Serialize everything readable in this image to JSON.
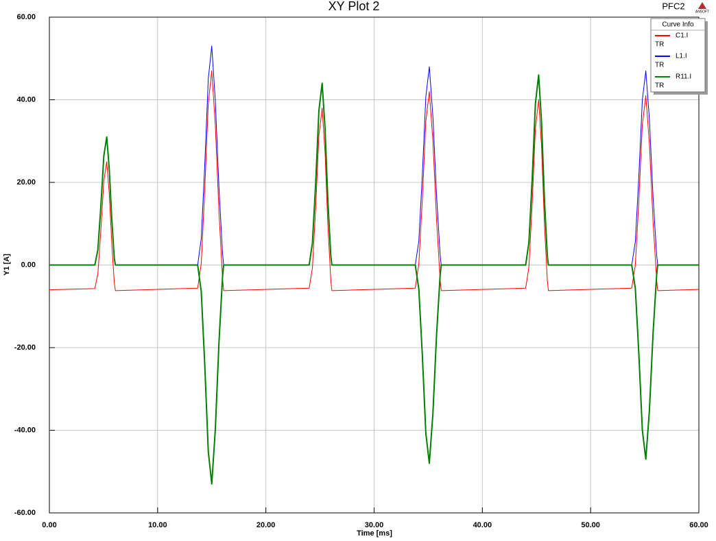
{
  "chart_data": {
    "type": "line",
    "title": "XY Plot 2",
    "project": "PFC2",
    "logo": "ANSOFT",
    "x_label": "Time [ms]",
    "y_label": "Y1 [A]",
    "legend_title": "Curve Info",
    "legend": "upper right",
    "grid": true,
    "xlim": [
      0,
      60
    ],
    "ylim": [
      -60,
      60
    ],
    "xticks": [
      {
        "value": 0,
        "label": "0.00"
      },
      {
        "value": 10,
        "label": "10.00"
      },
      {
        "value": 20,
        "label": "20.00"
      },
      {
        "value": 30,
        "label": "30.00"
      },
      {
        "value": 40,
        "label": "40.00"
      },
      {
        "value": 50,
        "label": "50.00"
      },
      {
        "value": 60,
        "label": "60.00"
      }
    ],
    "yticks": [
      {
        "value": -60,
        "label": "-60.00"
      },
      {
        "value": -40,
        "label": "-40.00"
      },
      {
        "value": -20,
        "label": "-20.00"
      },
      {
        "value": 0,
        "label": "0.00"
      },
      {
        "value": 20,
        "label": "20.00"
      },
      {
        "value": 40,
        "label": "40.00"
      },
      {
        "value": 60,
        "label": "60.00"
      }
    ],
    "x": [
      0,
      4.2,
      4.48,
      4.75,
      5.03,
      5.3,
      5.53,
      5.77,
      6.0,
      6.1,
      13.7,
      14.03,
      14.35,
      14.68,
      15.0,
      15.33,
      15.67,
      16.0,
      16.1,
      24.0,
      24.3,
      24.6,
      24.9,
      25.2,
      25.47,
      25.73,
      26.0,
      26.1,
      33.8,
      34.13,
      34.45,
      34.78,
      35.1,
      35.43,
      35.77,
      36.1,
      36.2,
      44.0,
      44.3,
      44.6,
      44.9,
      45.2,
      45.47,
      45.73,
      46.0,
      46.1,
      53.8,
      54.13,
      54.45,
      54.78,
      55.1,
      55.43,
      55.77,
      56.1,
      56.2,
      60
    ],
    "series": [
      {
        "name": "C1.I",
        "setup": "TR",
        "color": "#ff0000",
        "width": 1,
        "values": [
          -6.0,
          -5.7,
          -2.1,
          8.1,
          20.4,
          25,
          17.3,
          4.9,
          -4.4,
          -6.2,
          -5.6,
          0.4,
          17.9,
          39.1,
          47,
          33.8,
          12.6,
          -3.3,
          -6.2,
          -5.6,
          -0.7,
          13.8,
          31.4,
          38,
          27,
          9.4,
          -3.8,
          -6.2,
          -5.6,
          0.2,
          15.6,
          34.8,
          42,
          30,
          10.8,
          -3.6,
          -6.2,
          -5.6,
          -0.5,
          14.7,
          33.1,
          40,
          28.5,
          10.1,
          -3.7,
          -6.2,
          -5.6,
          0,
          15.2,
          34,
          41,
          29.3,
          10.5,
          -3.6,
          -6.2,
          -5.9
        ]
      },
      {
        "name": "L1.I",
        "setup": "TR",
        "color": "#0000ff",
        "width": 1,
        "values": [
          0,
          0,
          3.7,
          14.0,
          26.4,
          31,
          23.3,
          10.9,
          1.6,
          0,
          0,
          6.4,
          23.9,
          45.1,
          53,
          39.8,
          18.6,
          2.7,
          0,
          0,
          5.3,
          19.8,
          37.4,
          44,
          33,
          15.4,
          2.2,
          0,
          0,
          5.8,
          21.6,
          40.8,
          48,
          36,
          16.8,
          2.4,
          0,
          0,
          5.5,
          20.7,
          39.1,
          46,
          34.5,
          16.1,
          2.3,
          0,
          0,
          5.6,
          21.2,
          40,
          47,
          35.3,
          16.5,
          2.4,
          0,
          0
        ]
      },
      {
        "name": "R11.I",
        "setup": "TR",
        "color": "#008000",
        "width": 2,
        "values": [
          0,
          0,
          3.7,
          14.0,
          26.4,
          31,
          23.3,
          10.9,
          1.6,
          0,
          0,
          -6.4,
          -23.9,
          -45.1,
          -53,
          -39.8,
          -18.6,
          -2.7,
          0,
          0,
          5.3,
          19.8,
          37.4,
          44,
          33,
          15.4,
          2.2,
          0,
          0,
          -5.8,
          -21.6,
          -40.8,
          -48,
          -36,
          -16.8,
          -2.4,
          0,
          0,
          5.5,
          20.7,
          39.1,
          46,
          34.5,
          16.1,
          2.3,
          0,
          0,
          -5.6,
          -21.2,
          -40,
          -47,
          -35.3,
          -16.5,
          -2.4,
          0,
          0
        ]
      }
    ]
  }
}
